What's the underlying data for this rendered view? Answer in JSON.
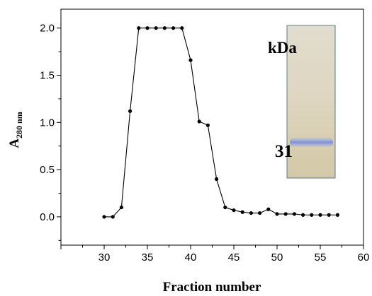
{
  "chart_data": {
    "type": "line",
    "xlabel": "Fraction number",
    "ylabel_main": "A",
    "ylabel_sub": "280 nm",
    "xlim": [
      25,
      60
    ],
    "ylim": [
      -0.3,
      2.2
    ],
    "x_ticks": [
      30,
      35,
      40,
      45,
      50,
      55,
      60
    ],
    "y_ticks": [
      0.0,
      0.5,
      1.0,
      1.5,
      2.0
    ],
    "x_tick_labels": [
      "30",
      "35",
      "40",
      "45",
      "50",
      "55",
      "60"
    ],
    "y_tick_labels": [
      "0.0",
      "0.5",
      "1.0",
      "1.5",
      "2.0"
    ],
    "grid": false,
    "series": [
      {
        "x": [
          30,
          31,
          32,
          33,
          34,
          35,
          36,
          37,
          38,
          39,
          40,
          41,
          42,
          43,
          44,
          45,
          46,
          47,
          48,
          49,
          50,
          51,
          52,
          53,
          54,
          55,
          56,
          57
        ],
        "y": [
          0.0,
          0.0,
          0.1,
          1.12,
          2.0,
          2.0,
          2.0,
          2.0,
          2.0,
          2.0,
          1.66,
          1.01,
          0.97,
          0.4,
          0.1,
          0.07,
          0.05,
          0.04,
          0.04,
          0.08,
          0.03,
          0.03,
          0.03,
          0.02,
          0.02,
          0.02,
          0.02,
          0.02
        ]
      }
    ]
  },
  "inset": {
    "unit_label": "kDa",
    "band_label": "31",
    "colors": {
      "gel_background": "#d9d0b8",
      "band": "#7d8fd6"
    }
  },
  "colors": {
    "line": "#000000",
    "marker": "#000000"
  }
}
